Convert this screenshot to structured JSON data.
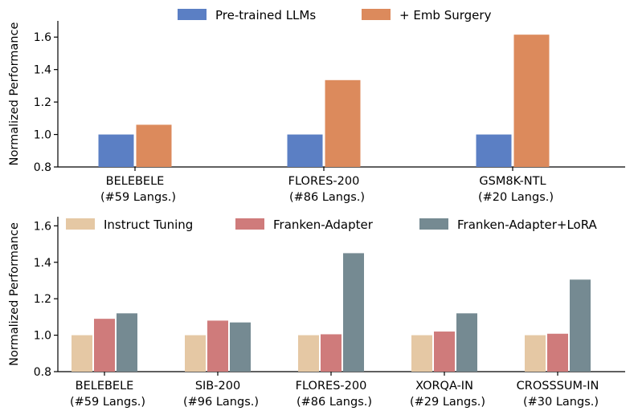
{
  "chart_data": [
    {
      "type": "bar",
      "categories": [
        "BELEBELE\n(#59 Langs.)",
        "FLORES-200\n(#86 Langs.)",
        "GSM8K-NTL\n(#20 Langs.)"
      ],
      "series": [
        {
          "name": "Pre-trained LLMs",
          "color": "#5b7fc4",
          "values": [
            1.0,
            1.0,
            1.0
          ]
        },
        {
          "name": "+ Emb Surgery",
          "color": "#dc8a5c",
          "values": [
            1.06,
            1.335,
            1.615
          ]
        }
      ],
      "ylabel": "Normalized Performance",
      "ylim": [
        0.8,
        1.7
      ],
      "yticks": [
        0.8,
        1.0,
        1.2,
        1.4,
        1.6
      ],
      "legend": "top-center",
      "grid": false
    },
    {
      "type": "bar",
      "categories": [
        "BELEBELE\n(#59 Langs.)",
        "SIB-200\n(#96 Langs.)",
        "FLORES-200\n(#86 Langs.)",
        "XORQA-IN\n(#29 Langs.)",
        "CROSSSUM-IN\n(#30 Langs.)"
      ],
      "series": [
        {
          "name": "Instruct Tuning",
          "color": "#e5c8a4",
          "values": [
            1.0,
            1.0,
            1.0,
            1.0,
            1.0
          ]
        },
        {
          "name": "Franken-Adapter",
          "color": "#cf7b7b",
          "values": [
            1.09,
            1.08,
            1.005,
            1.02,
            1.008
          ]
        },
        {
          "name": "Franken-Adapter+LoRA",
          "color": "#758a92",
          "values": [
            1.12,
            1.07,
            1.45,
            1.12,
            1.305
          ]
        }
      ],
      "ylabel": "Normalized Performance",
      "ylim": [
        0.8,
        1.65
      ],
      "yticks": [
        0.8,
        1.0,
        1.2,
        1.4,
        1.6
      ],
      "legend": "top-center",
      "grid": false
    }
  ]
}
